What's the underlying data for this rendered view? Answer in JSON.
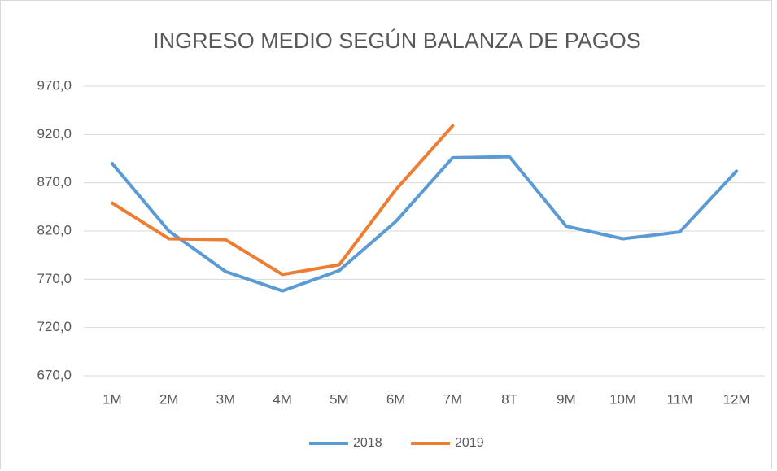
{
  "chart_data": {
    "type": "line",
    "title": "INGRESO MEDIO SEGÚN BALANZA DE PAGOS",
    "categories": [
      "1M",
      "2M",
      "3M",
      "4M",
      "5M",
      "6M",
      "7M",
      "8T",
      "9M",
      "10M",
      "11M",
      "12M"
    ],
    "series": [
      {
        "name": "2018",
        "color": "#5b9bd5",
        "values": [
          890,
          820,
          778,
          758,
          779,
          830,
          896,
          897,
          825,
          812,
          819,
          882
        ]
      },
      {
        "name": "2019",
        "color": "#ed7d31",
        "values": [
          849,
          812,
          811,
          775,
          785,
          863,
          929,
          null,
          null,
          null,
          null,
          null
        ]
      }
    ],
    "ylim": [
      670,
      970
    ],
    "yticks": [
      {
        "value": 670,
        "label": "670,0"
      },
      {
        "value": 720,
        "label": "720,0"
      },
      {
        "value": 770,
        "label": "770,0"
      },
      {
        "value": 820,
        "label": "820,0"
      },
      {
        "value": 870,
        "label": "870,0"
      },
      {
        "value": 920,
        "label": "920,0"
      },
      {
        "value": 970,
        "label": "970,0"
      }
    ],
    "grid": true,
    "legend": "bottom"
  }
}
